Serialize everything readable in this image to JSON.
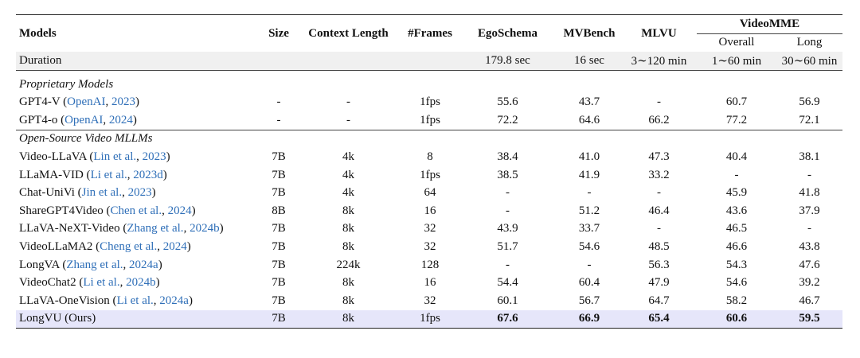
{
  "header": {
    "columns": [
      "Models",
      "Size",
      "Context Length",
      "#Frames",
      "EgoSchema",
      "MVBench",
      "MLVU"
    ],
    "group": "VideoMME",
    "subcolumns": [
      "Overall",
      "Long"
    ]
  },
  "duration": {
    "label": "Duration",
    "cells": [
      "179.8 sec",
      "16 sec",
      "3∼120 min",
      "1∼60 min",
      "30∼60 min"
    ]
  },
  "sections": [
    {
      "title": "Proprietary Models",
      "rows": [
        {
          "model": [
            "GPT4-V (",
            "OpenAI",
            ", ",
            "2023",
            ")"
          ],
          "cells": [
            "-",
            "-",
            "1fps",
            "55.6",
            "43.7",
            "-",
            "60.7",
            "56.9"
          ]
        },
        {
          "model": [
            "GPT4-o (",
            "OpenAI",
            ", ",
            "2024",
            ")"
          ],
          "cells": [
            "-",
            "-",
            "1fps",
            "72.2",
            "64.6",
            "66.2",
            "77.2",
            "72.1"
          ]
        }
      ]
    },
    {
      "title": "Open-Source Video MLLMs",
      "rows": [
        {
          "model": [
            "Video-LLaVA (",
            "Lin et al.",
            ", ",
            "2023",
            ")"
          ],
          "cells": [
            "7B",
            "4k",
            "8",
            "38.4",
            "41.0",
            "47.3",
            "40.4",
            "38.1"
          ]
        },
        {
          "model": [
            "LLaMA-VID (",
            "Li et al.",
            ", ",
            "2023d",
            ")"
          ],
          "cells": [
            "7B",
            "4k",
            "1fps",
            "38.5",
            "41.9",
            "33.2",
            "-",
            "-"
          ]
        },
        {
          "model": [
            "Chat-UniVi (",
            "Jin et al.",
            ", ",
            "2023",
            ")"
          ],
          "cells": [
            "7B",
            "4k",
            "64",
            "-",
            "-",
            "-",
            "45.9",
            "41.8"
          ]
        },
        {
          "model": [
            "ShareGPT4Video (",
            "Chen et al.",
            ", ",
            "2024",
            ")"
          ],
          "cells": [
            "8B",
            "8k",
            "16",
            "-",
            "51.2",
            "46.4",
            "43.6",
            "37.9"
          ]
        },
        {
          "model": [
            "LLaVA-NeXT-Video (",
            "Zhang et al.",
            ", ",
            "2024b",
            ")"
          ],
          "cells": [
            "7B",
            "8k",
            "32",
            "43.9",
            "33.7",
            "-",
            "46.5",
            "-"
          ]
        },
        {
          "model": [
            "VideoLLaMA2 (",
            "Cheng et al.",
            ", ",
            "2024",
            ")"
          ],
          "cells": [
            "7B",
            "8k",
            "32",
            "51.7",
            "54.6",
            "48.5",
            "46.6",
            "43.8"
          ]
        },
        {
          "model": [
            "LongVA (",
            "Zhang et al.",
            ", ",
            "2024a",
            ")"
          ],
          "cells": [
            "7B",
            "224k",
            "128",
            "-",
            "-",
            "56.3",
            "54.3",
            "47.6"
          ]
        },
        {
          "model": [
            "VideoChat2 (",
            "Li et al.",
            ", ",
            "2024b",
            ")"
          ],
          "cells": [
            "7B",
            "8k",
            "16",
            "54.4",
            "60.4",
            "47.9",
            "54.6",
            "39.2"
          ]
        },
        {
          "model": [
            "LLaVA-OneVision (",
            "Li et al.",
            ", ",
            "2024a",
            ")"
          ],
          "cells": [
            "7B",
            "8k",
            "32",
            "60.1",
            "56.7",
            "64.7",
            "58.2",
            "46.7"
          ]
        },
        {
          "model": [
            "LongVU (Ours)"
          ],
          "cells": [
            "7B",
            "8k",
            "1fps",
            "67.6",
            "66.9",
            "65.4",
            "60.6",
            "59.5"
          ],
          "highlight": true
        }
      ]
    }
  ]
}
